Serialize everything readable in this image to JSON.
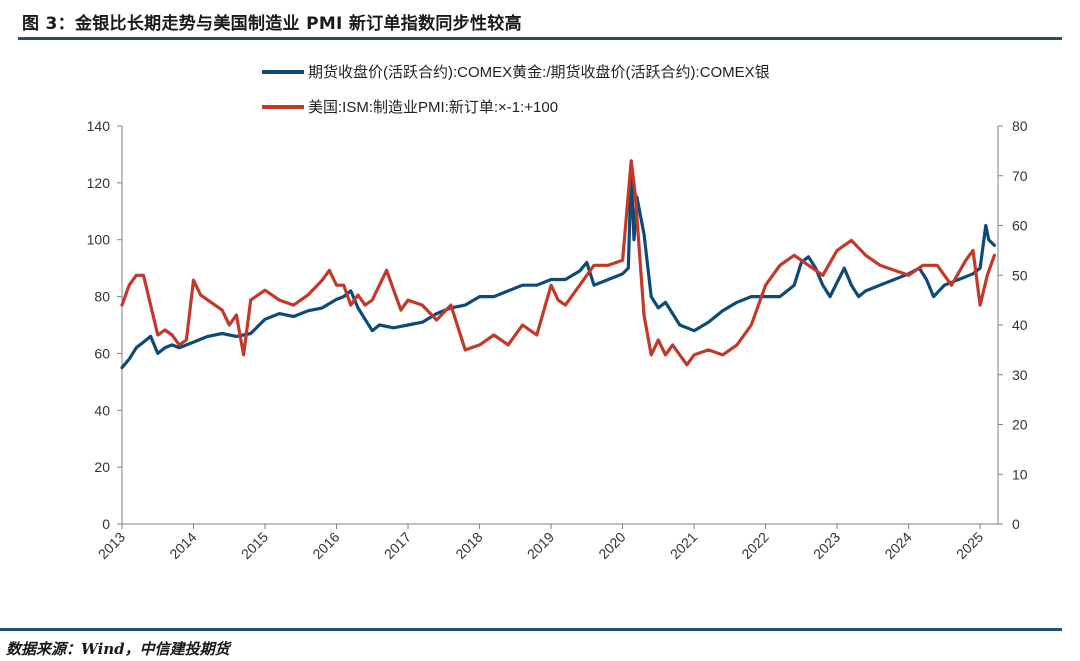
{
  "header": {
    "title": "图 3：金银比长期走势与美国制造业 PMI 新订单指数同步性较高"
  },
  "footer": {
    "source": "数据来源：Wind，中信建投期货"
  },
  "chart_data": {
    "type": "line",
    "title": "图 3：金银比长期走势与美国制造业 PMI 新订单指数同步性较高",
    "xlabel": "",
    "ylabel": "",
    "x_ticks": [
      "2013",
      "2014",
      "2015",
      "2016",
      "2017",
      "2018",
      "2019",
      "2020",
      "2021",
      "2022",
      "2023",
      "2024",
      "2025"
    ],
    "x_range": [
      2013.0,
      2025.25
    ],
    "y_left": {
      "range": [
        0,
        140
      ],
      "ticks": [
        0,
        20,
        40,
        60,
        80,
        100,
        120,
        140
      ]
    },
    "y_right": {
      "range": [
        0,
        80
      ],
      "ticks": [
        0,
        10,
        20,
        30,
        40,
        50,
        60,
        70,
        80
      ]
    },
    "grid": false,
    "legend_position": "top-center",
    "series": [
      {
        "name": "期货收盘价(活跃合约):COMEX黄金:/期货收盘价(活跃合约):COMEX银",
        "axis": "left",
        "color": "#0e4a78",
        "x": [
          2013.0,
          2013.1,
          2013.2,
          2013.3,
          2013.4,
          2013.5,
          2013.6,
          2013.7,
          2013.8,
          2013.9,
          2014.0,
          2014.2,
          2014.4,
          2014.6,
          2014.8,
          2015.0,
          2015.2,
          2015.4,
          2015.6,
          2015.8,
          2016.0,
          2016.1,
          2016.2,
          2016.3,
          2016.4,
          2016.5,
          2016.6,
          2016.8,
          2017.0,
          2017.2,
          2017.4,
          2017.6,
          2017.8,
          2018.0,
          2018.2,
          2018.4,
          2018.6,
          2018.8,
          2019.0,
          2019.2,
          2019.4,
          2019.5,
          2019.6,
          2019.8,
          2019.9,
          2020.0,
          2020.08,
          2020.12,
          2020.16,
          2020.2,
          2020.3,
          2020.4,
          2020.5,
          2020.6,
          2020.7,
          2020.8,
          2021.0,
          2021.2,
          2021.4,
          2021.6,
          2021.8,
          2022.0,
          2022.2,
          2022.4,
          2022.5,
          2022.6,
          2022.7,
          2022.8,
          2022.9,
          2023.0,
          2023.1,
          2023.2,
          2023.3,
          2023.4,
          2023.6,
          2023.8,
          2024.0,
          2024.15,
          2024.25,
          2024.35,
          2024.5,
          2024.7,
          2024.9,
          2025.0,
          2025.08,
          2025.12,
          2025.2
        ],
        "values": [
          55,
          58,
          62,
          64,
          66,
          60,
          62,
          63,
          62,
          63,
          64,
          66,
          67,
          66,
          67,
          72,
          74,
          73,
          75,
          76,
          79,
          80,
          82,
          76,
          72,
          68,
          70,
          69,
          70,
          71,
          74,
          76,
          77,
          80,
          80,
          82,
          84,
          84,
          86,
          86,
          89,
          92,
          84,
          86,
          87,
          88,
          90,
          124,
          100,
          115,
          102,
          80,
          76,
          78,
          74,
          70,
          68,
          71,
          75,
          78,
          80,
          80,
          80,
          84,
          92,
          94,
          90,
          84,
          80,
          85,
          90,
          84,
          80,
          82,
          84,
          86,
          88,
          90,
          86,
          80,
          84,
          86,
          88,
          90,
          105,
          100,
          98
        ]
      },
      {
        "name": "美国:ISM:制造业PMI:新订单:×-1:+100",
        "axis": "right",
        "color": "#c0392b",
        "x": [
          2013.0,
          2013.1,
          2013.2,
          2013.3,
          2013.4,
          2013.5,
          2013.6,
          2013.7,
          2013.8,
          2013.9,
          2014.0,
          2014.1,
          2014.2,
          2014.4,
          2014.5,
          2014.6,
          2014.7,
          2014.8,
          2014.9,
          2015.0,
          2015.2,
          2015.4,
          2015.6,
          2015.8,
          2015.9,
          2016.0,
          2016.1,
          2016.2,
          2016.3,
          2016.4,
          2016.5,
          2016.6,
          2016.7,
          2016.8,
          2016.9,
          2017.0,
          2017.2,
          2017.4,
          2017.6,
          2017.8,
          2018.0,
          2018.2,
          2018.4,
          2018.6,
          2018.8,
          2019.0,
          2019.1,
          2019.2,
          2019.4,
          2019.6,
          2019.8,
          2020.0,
          2020.12,
          2020.18,
          2020.25,
          2020.3,
          2020.4,
          2020.5,
          2020.6,
          2020.7,
          2020.8,
          2020.9,
          2021.0,
          2021.2,
          2021.4,
          2021.6,
          2021.8,
          2022.0,
          2022.2,
          2022.4,
          2022.6,
          2022.8,
          2023.0,
          2023.2,
          2023.4,
          2023.6,
          2023.8,
          2024.0,
          2024.2,
          2024.4,
          2024.6,
          2024.8,
          2024.9,
          2025.0,
          2025.1,
          2025.2
        ],
        "values": [
          44,
          48,
          50,
          50,
          44,
          38,
          39,
          38,
          36,
          37,
          49,
          46,
          45,
          43,
          40,
          42,
          34,
          45,
          46,
          47,
          45,
          44,
          46,
          49,
          51,
          48,
          48,
          44,
          46,
          44,
          45,
          48,
          51,
          47,
          43,
          45,
          44,
          41,
          44,
          35,
          36,
          38,
          36,
          40,
          38,
          48,
          45,
          44,
          48,
          52,
          52,
          53,
          73,
          66,
          52,
          42,
          34,
          37,
          34,
          36,
          34,
          32,
          34,
          35,
          34,
          36,
          40,
          48,
          52,
          54,
          52,
          50,
          55,
          57,
          54,
          52,
          51,
          50,
          52,
          52,
          48,
          53,
          55,
          44,
          50,
          54
        ]
      }
    ]
  }
}
